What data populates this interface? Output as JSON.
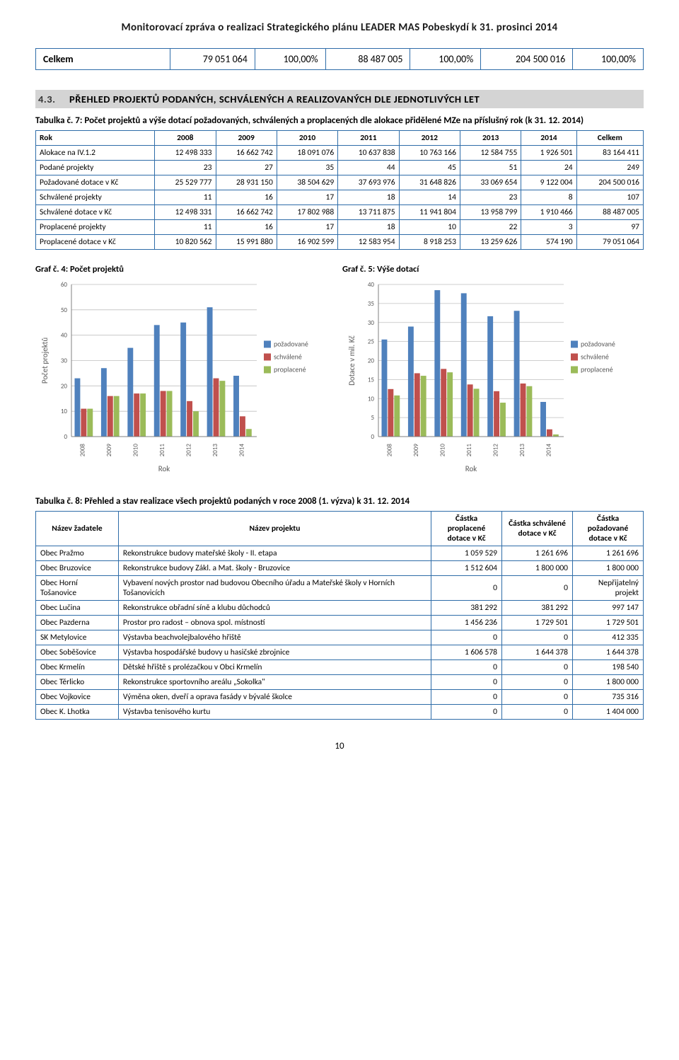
{
  "header": "Monitorovací zpráva o realizaci Strategického plánu LEADER MAS Pobeskydí k 31. prosinci 2014",
  "summary": {
    "label": "Celkem",
    "cells": [
      "79 051 064",
      "100,00%",
      "88 487 005",
      "100,00%",
      "204 500 016",
      "100,00%"
    ]
  },
  "section": {
    "num": "4.3.",
    "title": "PŘEHLED PROJEKTŮ PODANÝCH, SCHVÁLENÝCH A REALIZOVANÝCH DLE JEDNOTLIVÝCH LET"
  },
  "tab7_caption": "Tabulka č. 7: Počet projektů a výše dotací požadovaných, schválených a proplacených dle alokace přidělené MZe na příslušný rok (k 31. 12. 2014)",
  "tab7": {
    "cols": [
      "Rok",
      "2008",
      "2009",
      "2010",
      "2011",
      "2012",
      "2013",
      "2014",
      "Celkem"
    ],
    "rows": [
      [
        "Alokace na IV.1.2",
        "12 498 333",
        "16 662 742",
        "18 091 076",
        "10 637 838",
        "10 763 166",
        "12 584 755",
        "1 926 501",
        "83 164 411"
      ],
      [
        "Podané projekty",
        "23",
        "27",
        "35",
        "44",
        "45",
        "51",
        "24",
        "249"
      ],
      [
        "Požadované dotace v Kč",
        "25 529 777",
        "28 931 150",
        "38 504 629",
        "37 693 976",
        "31 648 826",
        "33 069 654",
        "9 122 004",
        "204 500 016"
      ],
      [
        "Schválené projekty",
        "11",
        "16",
        "17",
        "18",
        "14",
        "23",
        "8",
        "107"
      ],
      [
        "Schválené dotace v Kč",
        "12 498 331",
        "16 662 742",
        "17 802 988",
        "13 711 875",
        "11 941 804",
        "13 958 799",
        "1 910 466",
        "88 487 005"
      ],
      [
        "Proplacené projekty",
        "11",
        "16",
        "17",
        "18",
        "10",
        "22",
        "3",
        "97"
      ],
      [
        "Proplacené dotace v Kč",
        "10 820 562",
        "15 991 880",
        "16 902 599",
        "12 583 954",
        "8 918 253",
        "13 259 626",
        "574 190",
        "79 051 064"
      ]
    ]
  },
  "chart1": {
    "title": "Graf č. 4: Počet projektů",
    "ylabel": "Počet projektů",
    "xlabel": "Rok",
    "ymax": 60,
    "ystep": 10,
    "categories": [
      "2008",
      "2009",
      "2010",
      "2011",
      "2012",
      "2013",
      "2014"
    ],
    "series": [
      {
        "name": "požadované",
        "color": "#4f81bd",
        "vals": [
          23,
          27,
          35,
          44,
          45,
          51,
          24
        ]
      },
      {
        "name": "schválené",
        "color": "#c0504d",
        "vals": [
          11,
          16,
          17,
          18,
          14,
          23,
          8
        ]
      },
      {
        "name": "proplacené",
        "color": "#9bbb59",
        "vals": [
          11,
          16,
          17,
          18,
          10,
          22,
          3
        ]
      }
    ],
    "grid_color": "#bfbfbf",
    "axis_color": "#808080",
    "text_color": "#595959",
    "label_fontsize": 11,
    "tick_fontsize": 9
  },
  "chart2": {
    "title": "Graf č. 5: Výše dotací",
    "ylabel": "Dotace v mil. Kč",
    "xlabel": "Rok",
    "ymax": 40,
    "ystep": 5,
    "categories": [
      "2008",
      "2009",
      "2010",
      "2011",
      "2012",
      "2013",
      "2014"
    ],
    "series": [
      {
        "name": "požadované",
        "color": "#4f81bd",
        "vals": [
          25.53,
          28.93,
          38.5,
          37.69,
          31.65,
          33.07,
          9.12
        ]
      },
      {
        "name": "schválené",
        "color": "#c0504d",
        "vals": [
          12.5,
          16.66,
          17.8,
          13.71,
          11.94,
          13.96,
          1.91
        ]
      },
      {
        "name": "proplacené",
        "color": "#9bbb59",
        "vals": [
          10.82,
          15.99,
          16.9,
          12.58,
          8.92,
          13.26,
          0.57
        ]
      }
    ],
    "grid_color": "#bfbfbf",
    "axis_color": "#808080",
    "text_color": "#595959",
    "label_fontsize": 11,
    "tick_fontsize": 9
  },
  "tab8_caption": "Tabulka č. 8: Přehled a stav realizace všech projektů podaných v roce 2008 (1. výzva) k 31. 12. 2014",
  "tab8": {
    "cols": [
      "Název žadatele",
      "Název projektu",
      "Částka proplacené dotace v Kč",
      "Částka schválené dotace v Kč",
      "Částka požadované dotace v Kč"
    ],
    "rows": [
      [
        "Obec Pražmo",
        "Rekonstrukce budovy mateřské školy - II. etapa",
        "1 059 529",
        "1 261 696",
        "1 261 696"
      ],
      [
        "Obec Bruzovice",
        "Rekonstrukce budovy Zákl. a Mat. školy - Bruzovice",
        "1 512 604",
        "1 800 000",
        "1 800 000"
      ],
      [
        "Obec Horní Tošanovice",
        "Vybavení nových prostor nad budovou Obecního úřadu a Mateřské školy v Horních Tošanovicích",
        "0",
        "0",
        "Nepřijatelný projekt"
      ],
      [
        "Obec Lučina",
        "Rekonstrukce obřadní síně a klubu důchodců",
        "381 292",
        "381 292",
        "997 147"
      ],
      [
        "Obec Pazderna",
        "Prostor pro radost – obnova spol. místností",
        "1 456 236",
        "1 729 501",
        "1 729 501"
      ],
      [
        "SK Metylovice",
        "Výstavba beachvolejbalového hřiště",
        "0",
        "0",
        "412 335"
      ],
      [
        "Obec Soběšovice",
        "Výstavba hospodářské budovy u hasičské zbrojnice",
        "1 606 578",
        "1 644 378",
        "1 644 378"
      ],
      [
        "Obec Krmelín",
        "Dětské hřiště s prolézačkou v Obci Krmelín",
        "0",
        "0",
        "198 540"
      ],
      [
        "Obec Těrlicko",
        "Rekonstrukce sportovního areálu „Sokolka\"",
        "0",
        "0",
        "1 800 000"
      ],
      [
        "Obec Vojkovice",
        "Výměna oken, dveří a oprava fasády v bývalé školce",
        "0",
        "0",
        "735 316"
      ],
      [
        "Obec K. Lhotka",
        "Výstavba tenisového kurtu",
        "0",
        "0",
        "1 404 000"
      ]
    ]
  },
  "page_num": "10"
}
